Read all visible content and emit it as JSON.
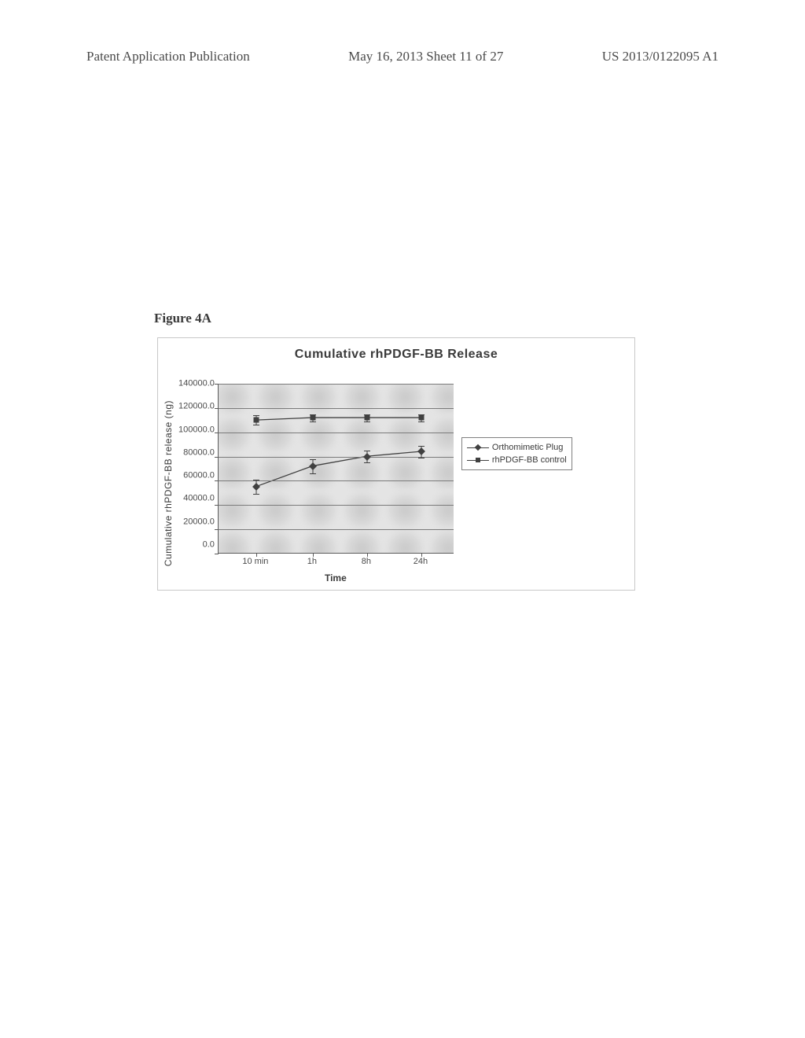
{
  "header": {
    "left": "Patent Application Publication",
    "center": "May 16, 2013  Sheet 11 of 27",
    "right": "US 2013/0122095 A1"
  },
  "figure": {
    "label": "Figure 4A",
    "chart": {
      "type": "line",
      "title": "Cumulative rhPDGF-BB Release",
      "ylabel": "Cumulative rhPDGF-BB release (ng)",
      "xlabel": "Time",
      "ylim": [
        0,
        140000
      ],
      "ytick_step": 20000,
      "yticks": [
        "140000.0",
        "120000.0",
        "100000.0",
        "80000.0",
        "60000.0",
        "40000.0",
        "20000.0",
        "0.0"
      ],
      "xticks": [
        "10 min",
        "1h",
        "8h",
        "24h"
      ],
      "xpositions_pct": [
        16,
        40,
        63,
        86
      ],
      "series": [
        {
          "name": "Orthomimetic Plug",
          "marker": "diamond",
          "values": [
            55000,
            72000,
            80000,
            84000
          ],
          "errors": [
            6000,
            6000,
            5000,
            5000
          ],
          "color": "#404040"
        },
        {
          "name": "rhPDGF-BB control",
          "marker": "square",
          "values": [
            110000,
            112000,
            112000,
            112000
          ],
          "errors": [
            4000,
            3000,
            3000,
            3000
          ],
          "color": "#404040"
        }
      ],
      "grid_color": "#7a7a7a",
      "plot_bg": "#e0e0e0",
      "border_color": "#c8c8c8"
    },
    "legend": {
      "items": [
        {
          "marker": "diamond",
          "label": "Orthomimetic Plug"
        },
        {
          "marker": "square",
          "label": "rhPDGF-BB control"
        }
      ]
    }
  }
}
